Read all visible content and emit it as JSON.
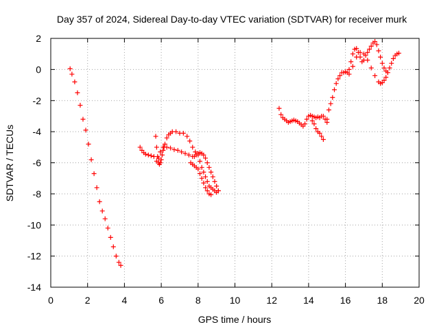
{
  "chart_data": {
    "type": "scatter",
    "title": "Day 357 of 2024, Sidereal Day-to-day VTEC variation (SDTVAR) for receiver murk",
    "xlabel": "GPS time / hours",
    "ylabel": "SDTVAR / TECUs",
    "xlim": [
      0,
      20
    ],
    "ylim": [
      -14,
      2
    ],
    "xticks": [
      0,
      2,
      4,
      6,
      8,
      10,
      12,
      14,
      16,
      18,
      20
    ],
    "yticks": [
      -14,
      -12,
      -10,
      -8,
      -6,
      -4,
      -2,
      0,
      2
    ],
    "grid": true,
    "marker": "+",
    "color": "#ff0000",
    "series": [
      {
        "x": [
          1.05,
          1.15,
          1.3,
          1.45,
          1.6,
          1.75,
          1.9,
          2.05,
          2.2,
          2.35,
          2.5,
          2.65,
          2.8,
          2.95,
          3.1,
          3.25,
          3.4,
          3.55,
          3.7,
          3.8
        ],
        "y": [
          0.05,
          -0.3,
          -0.8,
          -1.5,
          -2.3,
          -3.2,
          -3.9,
          -4.8,
          -5.8,
          -6.7,
          -7.6,
          -8.5,
          -9.1,
          -9.6,
          -10.2,
          -10.8,
          -11.4,
          -12.0,
          -12.4,
          -12.6
        ]
      },
      {
        "x": [
          4.85,
          4.95,
          5.05,
          5.15,
          5.3,
          5.45,
          5.6
        ],
        "y": [
          -5.0,
          -5.2,
          -5.35,
          -5.45,
          -5.5,
          -5.55,
          -5.6
        ]
      },
      {
        "x": [
          5.7,
          5.75,
          5.8,
          5.85,
          5.9,
          5.95,
          6.0,
          6.05,
          6.1,
          6.15,
          6.2,
          6.3,
          6.4,
          6.5,
          6.6,
          6.8,
          7.0,
          7.2,
          7.4,
          7.55,
          7.7,
          7.85,
          8.0,
          8.1,
          8.2,
          8.3,
          8.4,
          8.5,
          8.6,
          8.7,
          8.8,
          8.9,
          9.0,
          9.1
        ],
        "y": [
          -4.3,
          -5.0,
          -5.6,
          -6.0,
          -6.1,
          -6.0,
          -5.8,
          -5.5,
          -5.2,
          -5.0,
          -4.8,
          -4.4,
          -4.2,
          -4.1,
          -4.0,
          -4.0,
          -4.1,
          -4.1,
          -4.3,
          -4.6,
          -5.0,
          -5.3,
          -5.5,
          -5.9,
          -6.3,
          -6.6,
          -6.9,
          -7.2,
          -7.5,
          -7.6,
          -7.7,
          -7.8,
          -7.9,
          -7.8
        ]
      },
      {
        "x": [
          5.75,
          5.85,
          5.95,
          6.1,
          6.3,
          6.5,
          6.7,
          6.9,
          7.1,
          7.3,
          7.5,
          7.7,
          7.8,
          7.9,
          8.0,
          8.1,
          8.2,
          8.3,
          8.4,
          8.5,
          8.6,
          8.7,
          8.8,
          8.9,
          9.0,
          9.1
        ],
        "y": [
          -5.9,
          -5.7,
          -5.3,
          -5.0,
          -5.0,
          -5.05,
          -5.15,
          -5.2,
          -5.3,
          -5.4,
          -5.5,
          -5.6,
          -5.6,
          -5.5,
          -5.4,
          -5.35,
          -5.4,
          -5.5,
          -5.7,
          -6.0,
          -6.3,
          -6.6,
          -6.9,
          -7.2,
          -7.5,
          -7.8
        ]
      },
      {
        "x": [
          7.6,
          7.7,
          7.8,
          7.9,
          8.0,
          8.1,
          8.2,
          8.3,
          8.4,
          8.5,
          8.6,
          8.7
        ],
        "y": [
          -6.0,
          -6.1,
          -6.2,
          -6.3,
          -6.4,
          -6.7,
          -7.0,
          -7.3,
          -7.6,
          -7.8,
          -8.0,
          -8.05
        ]
      },
      {
        "x": [
          12.4,
          12.5,
          12.6,
          12.7,
          12.8,
          12.9,
          13.0,
          13.1,
          13.2,
          13.3,
          13.4,
          13.5,
          13.6,
          13.7,
          13.8,
          13.9,
          14.0,
          14.1,
          14.2,
          14.3,
          14.4,
          14.5,
          14.6,
          14.7,
          14.8,
          14.9,
          15.0
        ],
        "y": [
          -2.5,
          -2.9,
          -3.1,
          -3.2,
          -3.3,
          -3.4,
          -3.35,
          -3.3,
          -3.25,
          -3.3,
          -3.35,
          -3.45,
          -3.55,
          -3.65,
          -3.5,
          -3.2,
          -3.0,
          -2.95,
          -3.0,
          -3.05,
          -3.1,
          -3.05,
          -3.1,
          -3.0,
          -3.0,
          -3.2,
          -3.4
        ]
      },
      {
        "x": [
          14.2,
          14.3,
          14.4,
          14.5,
          14.6,
          14.7,
          14.8
        ],
        "y": [
          -3.3,
          -3.5,
          -3.8,
          -4.0,
          -4.1,
          -4.3,
          -4.5
        ]
      },
      {
        "x": [
          15.0,
          15.1,
          15.2,
          15.3,
          15.4,
          15.5,
          15.6,
          15.7,
          15.8,
          15.9,
          16.0,
          16.1,
          16.2,
          16.3,
          16.4,
          16.5,
          16.6,
          16.7,
          16.8,
          16.9,
          17.0,
          17.1,
          17.2,
          17.3,
          17.4,
          17.5,
          17.6,
          17.7,
          17.8,
          17.9,
          18.0,
          18.1,
          18.2,
          18.3,
          18.4,
          18.5,
          18.6,
          18.7,
          18.8,
          18.9
        ],
        "y": [
          -3.2,
          -2.6,
          -2.2,
          -1.8,
          -1.3,
          -0.9,
          -0.6,
          -0.4,
          -0.2,
          -0.2,
          -0.15,
          -0.2,
          0.0,
          0.5,
          1.0,
          1.3,
          1.35,
          1.1,
          0.8,
          0.5,
          0.6,
          0.9,
          1.1,
          1.3,
          1.5,
          1.7,
          1.8,
          1.6,
          1.2,
          0.8,
          0.4,
          0.1,
          -0.1,
          -0.2,
          0.1,
          0.4,
          0.7,
          0.9,
          1.0,
          1.05
        ]
      },
      {
        "x": [
          16.2,
          16.4,
          16.6,
          16.8,
          17.0,
          17.2,
          17.4,
          17.6,
          17.8,
          17.9,
          18.0,
          18.1,
          18.2,
          18.3
        ],
        "y": [
          -0.3,
          0.2,
          0.8,
          1.1,
          1.0,
          0.6,
          0.1,
          -0.4,
          -0.8,
          -0.9,
          -0.85,
          -0.7,
          -0.5,
          -0.2
        ]
      }
    ]
  }
}
